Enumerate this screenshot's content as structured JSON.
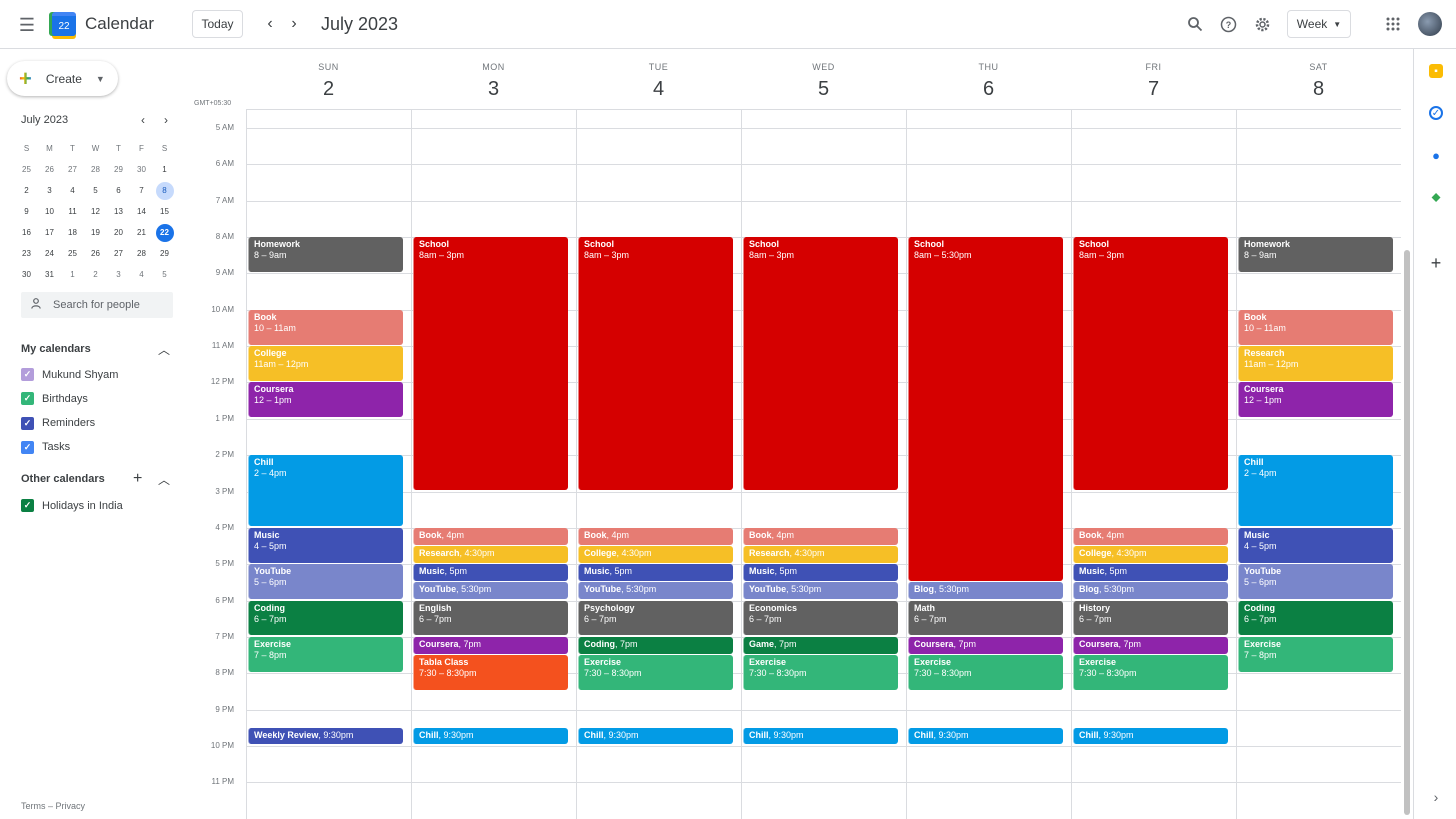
{
  "app": {
    "title": "Calendar",
    "logo_day": "22"
  },
  "toolbar": {
    "today": "Today",
    "prev": "‹",
    "next": "›",
    "month_title": "July 2023",
    "view": "Week"
  },
  "sidebar": {
    "create": "Create",
    "mini_title": "July 2023",
    "weekday_initials": [
      "S",
      "M",
      "T",
      "W",
      "T",
      "F",
      "S"
    ],
    "weeks": [
      [
        "25",
        "26",
        "27",
        "28",
        "29",
        "30",
        "1"
      ],
      [
        "2",
        "3",
        "4",
        "5",
        "6",
        "7",
        "8"
      ],
      [
        "9",
        "10",
        "11",
        "12",
        "13",
        "14",
        "15"
      ],
      [
        "16",
        "17",
        "18",
        "19",
        "20",
        "21",
        "22"
      ],
      [
        "23",
        "24",
        "25",
        "26",
        "27",
        "28",
        "29"
      ],
      [
        "30",
        "31",
        "1",
        "2",
        "3",
        "4",
        "5"
      ]
    ],
    "search_placeholder": "Search for people",
    "my_calendars_title": "My calendars",
    "my_calendars": [
      {
        "label": "Mukund Shyam",
        "color": "#b39ddb"
      },
      {
        "label": "Birthdays",
        "color": "#33b679"
      },
      {
        "label": "Reminders",
        "color": "#3f51b5"
      },
      {
        "label": "Tasks",
        "color": "#4285f4"
      }
    ],
    "other_calendars_title": "Other calendars",
    "other_calendars": [
      {
        "label": "Holidays in India",
        "color": "#0b8043"
      }
    ],
    "terms": "Terms – Privacy"
  },
  "week": {
    "timezone": "GMT+05:30",
    "days": [
      {
        "name": "SUN",
        "date": "2"
      },
      {
        "name": "MON",
        "date": "3"
      },
      {
        "name": "TUE",
        "date": "4"
      },
      {
        "name": "WED",
        "date": "5"
      },
      {
        "name": "THU",
        "date": "6"
      },
      {
        "name": "FRI",
        "date": "7"
      },
      {
        "name": "SAT",
        "date": "8"
      }
    ],
    "hours": [
      "5 AM",
      "6 AM",
      "7 AM",
      "8 AM",
      "9 AM",
      "10 AM",
      "11 AM",
      "12 PM",
      "1 PM",
      "2 PM",
      "3 PM",
      "4 PM",
      "5 PM",
      "6 PM",
      "7 PM",
      "8 PM",
      "9 PM",
      "10 PM",
      "11 PM"
    ]
  },
  "colors": {
    "grey": "#616161",
    "flamingo": "#e67c73",
    "banana": "#f6bf26",
    "grape": "#8e24aa",
    "peacock": "#039be5",
    "blueberry": "#3f51b5",
    "lavender": "#7986cb",
    "basil": "#0b8043",
    "sage": "#33b679",
    "tomato": "#d50000",
    "tangerine": "#f4511e"
  },
  "events": [
    {
      "day": 0,
      "start": 8,
      "end": 9,
      "title": "Homework",
      "time": "8 – 9am",
      "color": "grey"
    },
    {
      "day": 0,
      "start": 10,
      "end": 11,
      "title": "Book",
      "time": "10 – 11am",
      "color": "flamingo"
    },
    {
      "day": 0,
      "start": 11,
      "end": 12,
      "title": "College",
      "time": "11am – 12pm",
      "color": "banana"
    },
    {
      "day": 0,
      "start": 12,
      "end": 13,
      "title": "Coursera",
      "time": "12 – 1pm",
      "color": "grape"
    },
    {
      "day": 0,
      "start": 14,
      "end": 16,
      "title": "Chill",
      "time": "2 – 4pm",
      "color": "peacock"
    },
    {
      "day": 0,
      "start": 16,
      "end": 17,
      "title": "Music",
      "time": "4 – 5pm",
      "color": "blueberry"
    },
    {
      "day": 0,
      "start": 17,
      "end": 18,
      "title": "YouTube",
      "time": "5 – 6pm",
      "color": "lavender"
    },
    {
      "day": 0,
      "start": 18,
      "end": 19,
      "title": "Coding",
      "time": "6 – 7pm",
      "color": "basil"
    },
    {
      "day": 0,
      "start": 19,
      "end": 20,
      "title": "Exercise",
      "time": "7 – 8pm",
      "color": "sage"
    },
    {
      "day": 0,
      "start": 21.5,
      "end": 22,
      "title": "Weekly Review",
      "time": ", 9:30pm",
      "color": "blueberry",
      "inline": true
    },
    {
      "day": 1,
      "start": 8,
      "end": 15,
      "title": "School",
      "time": "8am – 3pm",
      "color": "tomato"
    },
    {
      "day": 1,
      "start": 16,
      "end": 16.5,
      "title": "Book",
      "time": ", 4pm",
      "color": "flamingo",
      "inline": true
    },
    {
      "day": 1,
      "start": 16.5,
      "end": 17,
      "title": "Research",
      "time": ", 4:30pm",
      "color": "banana",
      "inline": true
    },
    {
      "day": 1,
      "start": 17,
      "end": 17.5,
      "title": "Music",
      "time": ", 5pm",
      "color": "blueberry",
      "inline": true
    },
    {
      "day": 1,
      "start": 17.5,
      "end": 18,
      "title": "YouTube",
      "time": ", 5:30pm",
      "color": "lavender",
      "inline": true
    },
    {
      "day": 1,
      "start": 18,
      "end": 19,
      "title": "English",
      "time": "6 – 7pm",
      "color": "grey"
    },
    {
      "day": 1,
      "start": 19,
      "end": 19.5,
      "title": "Coursera",
      "time": ", 7pm",
      "color": "grape",
      "inline": true
    },
    {
      "day": 1,
      "start": 19.5,
      "end": 20.5,
      "title": "Tabla Class",
      "time": "7:30 – 8:30pm",
      "color": "tangerine"
    },
    {
      "day": 1,
      "start": 21.5,
      "end": 22,
      "title": "Chill",
      "time": ", 9:30pm",
      "color": "peacock",
      "inline": true
    },
    {
      "day": 2,
      "start": 8,
      "end": 15,
      "title": "School",
      "time": "8am – 3pm",
      "color": "tomato"
    },
    {
      "day": 2,
      "start": 16,
      "end": 16.5,
      "title": "Book",
      "time": ", 4pm",
      "color": "flamingo",
      "inline": true
    },
    {
      "day": 2,
      "start": 16.5,
      "end": 17,
      "title": "College",
      "time": ", 4:30pm",
      "color": "banana",
      "inline": true
    },
    {
      "day": 2,
      "start": 17,
      "end": 17.5,
      "title": "Music",
      "time": ", 5pm",
      "color": "blueberry",
      "inline": true
    },
    {
      "day": 2,
      "start": 17.5,
      "end": 18,
      "title": "YouTube",
      "time": ", 5:30pm",
      "color": "lavender",
      "inline": true
    },
    {
      "day": 2,
      "start": 18,
      "end": 19,
      "title": "Psychology",
      "time": "6 – 7pm",
      "color": "grey"
    },
    {
      "day": 2,
      "start": 19,
      "end": 19.5,
      "title": "Coding",
      "time": ", 7pm",
      "color": "basil",
      "inline": true
    },
    {
      "day": 2,
      "start": 19.5,
      "end": 20.5,
      "title": "Exercise",
      "time": "7:30 – 8:30pm",
      "color": "sage"
    },
    {
      "day": 2,
      "start": 21.5,
      "end": 22,
      "title": "Chill",
      "time": ", 9:30pm",
      "color": "peacock",
      "inline": true
    },
    {
      "day": 3,
      "start": 8,
      "end": 15,
      "title": "School",
      "time": "8am – 3pm",
      "color": "tomato"
    },
    {
      "day": 3,
      "start": 16,
      "end": 16.5,
      "title": "Book",
      "time": ", 4pm",
      "color": "flamingo",
      "inline": true
    },
    {
      "day": 3,
      "start": 16.5,
      "end": 17,
      "title": "Research",
      "time": ", 4:30pm",
      "color": "banana",
      "inline": true
    },
    {
      "day": 3,
      "start": 17,
      "end": 17.5,
      "title": "Music",
      "time": ", 5pm",
      "color": "blueberry",
      "inline": true
    },
    {
      "day": 3,
      "start": 17.5,
      "end": 18,
      "title": "YouTube",
      "time": ", 5:30pm",
      "color": "lavender",
      "inline": true
    },
    {
      "day": 3,
      "start": 18,
      "end": 19,
      "title": "Economics",
      "time": "6 – 7pm",
      "color": "grey"
    },
    {
      "day": 3,
      "start": 19,
      "end": 19.5,
      "title": "Game",
      "time": ", 7pm",
      "color": "basil",
      "inline": true
    },
    {
      "day": 3,
      "start": 19.5,
      "end": 20.5,
      "title": "Exercise",
      "time": "7:30 – 8:30pm",
      "color": "sage"
    },
    {
      "day": 3,
      "start": 21.5,
      "end": 22,
      "title": "Chill",
      "time": ", 9:30pm",
      "color": "peacock",
      "inline": true
    },
    {
      "day": 4,
      "start": 8,
      "end": 17.5,
      "title": "School",
      "time": "8am – 5:30pm",
      "color": "tomato"
    },
    {
      "day": 4,
      "start": 17.5,
      "end": 18,
      "title": "Blog",
      "time": ", 5:30pm",
      "color": "lavender",
      "inline": true
    },
    {
      "day": 4,
      "start": 18,
      "end": 19,
      "title": "Math",
      "time": "6 – 7pm",
      "color": "grey"
    },
    {
      "day": 4,
      "start": 19,
      "end": 19.5,
      "title": "Coursera",
      "time": ", 7pm",
      "color": "grape",
      "inline": true
    },
    {
      "day": 4,
      "start": 19.5,
      "end": 20.5,
      "title": "Exercise",
      "time": "7:30 – 8:30pm",
      "color": "sage"
    },
    {
      "day": 4,
      "start": 21.5,
      "end": 22,
      "title": "Chill",
      "time": ", 9:30pm",
      "color": "peacock",
      "inline": true
    },
    {
      "day": 5,
      "start": 8,
      "end": 15,
      "title": "School",
      "time": "8am – 3pm",
      "color": "tomato"
    },
    {
      "day": 5,
      "start": 16,
      "end": 16.5,
      "title": "Book",
      "time": ", 4pm",
      "color": "flamingo",
      "inline": true
    },
    {
      "day": 5,
      "start": 16.5,
      "end": 17,
      "title": "College",
      "time": ", 4:30pm",
      "color": "banana",
      "inline": true
    },
    {
      "day": 5,
      "start": 17,
      "end": 17.5,
      "title": "Music",
      "time": ", 5pm",
      "color": "blueberry",
      "inline": true
    },
    {
      "day": 5,
      "start": 17.5,
      "end": 18,
      "title": "Blog",
      "time": ", 5:30pm",
      "color": "lavender",
      "inline": true
    },
    {
      "day": 5,
      "start": 18,
      "end": 19,
      "title": "History",
      "time": "6 – 7pm",
      "color": "grey"
    },
    {
      "day": 5,
      "start": 19,
      "end": 19.5,
      "title": "Coursera",
      "time": ", 7pm",
      "color": "grape",
      "inline": true
    },
    {
      "day": 5,
      "start": 19.5,
      "end": 20.5,
      "title": "Exercise",
      "time": "7:30 – 8:30pm",
      "color": "sage"
    },
    {
      "day": 5,
      "start": 21.5,
      "end": 22,
      "title": "Chill",
      "time": ", 9:30pm",
      "color": "peacock",
      "inline": true
    },
    {
      "day": 6,
      "start": 8,
      "end": 9,
      "title": "Homework",
      "time": "8 – 9am",
      "color": "grey"
    },
    {
      "day": 6,
      "start": 10,
      "end": 11,
      "title": "Book",
      "time": "10 – 11am",
      "color": "flamingo"
    },
    {
      "day": 6,
      "start": 11,
      "end": 12,
      "title": "Research",
      "time": "11am – 12pm",
      "color": "banana"
    },
    {
      "day": 6,
      "start": 12,
      "end": 13,
      "title": "Coursera",
      "time": "12 – 1pm",
      "color": "grape"
    },
    {
      "day": 6,
      "start": 14,
      "end": 16,
      "title": "Chill",
      "time": "2 – 4pm",
      "color": "peacock"
    },
    {
      "day": 6,
      "start": 16,
      "end": 17,
      "title": "Music",
      "time": "4 – 5pm",
      "color": "blueberry"
    },
    {
      "day": 6,
      "start": 17,
      "end": 18,
      "title": "YouTube",
      "time": "5 – 6pm",
      "color": "lavender"
    },
    {
      "day": 6,
      "start": 18,
      "end": 19,
      "title": "Coding",
      "time": "6 – 7pm",
      "color": "basil"
    },
    {
      "day": 6,
      "start": 19,
      "end": 20,
      "title": "Exercise",
      "time": "7 – 8pm",
      "color": "sage"
    }
  ]
}
